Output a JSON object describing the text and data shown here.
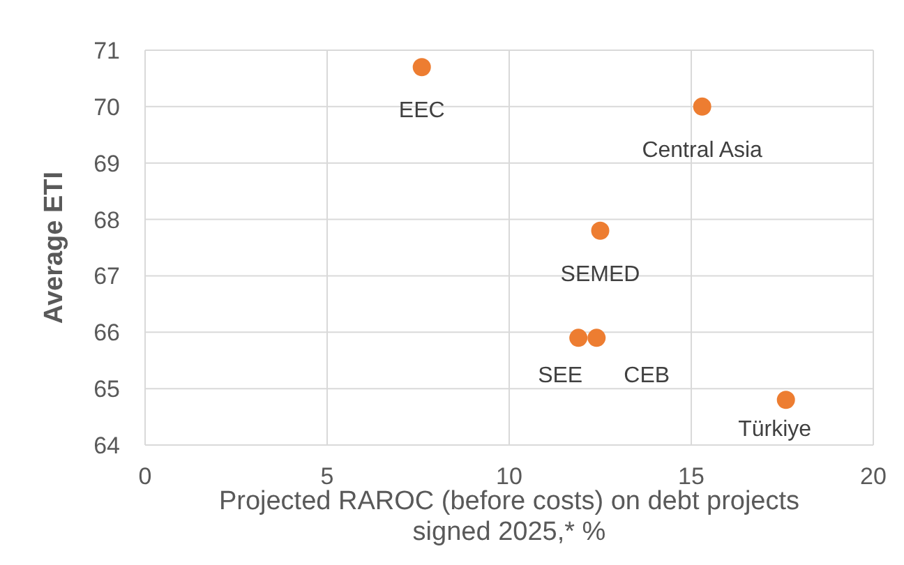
{
  "chart_data": {
    "type": "scatter",
    "xlabel": "Projected RAROC (before costs) on debt projects signed 2025,* %",
    "ylabel": "Average ETI",
    "series": [
      {
        "color": "#ed7d31",
        "x": [
          7.6,
          15.3,
          12.5,
          11.9,
          12.4,
          17.6
        ],
        "values": [
          70.7,
          70.0,
          67.8,
          65.9,
          65.9,
          64.8
        ]
      }
    ],
    "annotations": [
      {
        "text": "EEC",
        "x": 7.6,
        "y": 70.7
      },
      {
        "text": "Central Asia",
        "x": 15.3,
        "y": 70.0
      },
      {
        "text": "SEMED",
        "x": 12.5,
        "y": 67.8
      },
      {
        "text": "SEE",
        "x": 11.9,
        "y": 65.9
      },
      {
        "text": "CEB",
        "x": 12.4,
        "y": 65.9
      },
      {
        "text": "Türkiye",
        "x": 17.6,
        "y": 64.8
      }
    ],
    "xlim": [
      0,
      20
    ],
    "xticks": [
      0,
      5,
      10,
      15,
      20
    ],
    "ylim": [
      64,
      71
    ],
    "yticks": [
      64,
      65,
      66,
      67,
      68,
      69,
      70,
      71
    ],
    "grid": true,
    "marker": "circle",
    "legend": false
  }
}
